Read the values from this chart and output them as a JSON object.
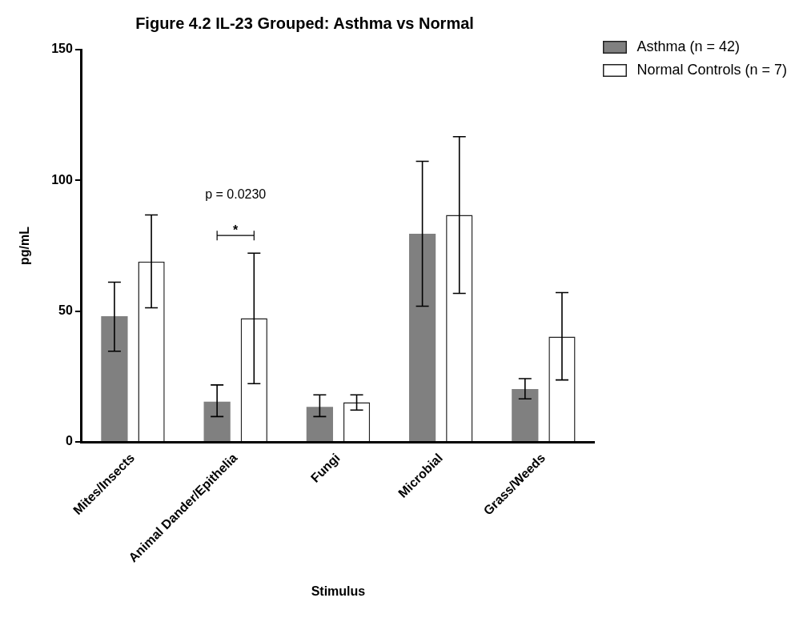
{
  "chart_data": {
    "type": "bar",
    "title": "Figure 4.2 IL-23 Grouped: Asthma vs Normal",
    "xlabel": "Stimulus",
    "ylabel": "pg/mL",
    "categories": [
      "Mites/Insects",
      "Animal Dander/Epithelia",
      "Fungi",
      "Microbial",
      "Grass/Weeds"
    ],
    "series": [
      {
        "name": "Asthma (n = 42)",
        "color": "#808080",
        "values": [
          48.1,
          15.4,
          13.4,
          79.6,
          20.2
        ],
        "errors": [
          [
            34.7,
            61.1
          ],
          [
            9.7,
            21.8
          ],
          [
            9.7,
            18.0
          ],
          [
            51.9,
            107.3
          ],
          [
            16.5,
            24.2
          ]
        ]
      },
      {
        "name": "Normal Controls (n = 7)",
        "color": "#ffffff",
        "values": [
          69.0,
          47.3,
          15.2,
          86.8,
          40.3
        ],
        "errors": [
          [
            51.3,
            86.8
          ],
          [
            22.3,
            72.2
          ],
          [
            12.2,
            18.0
          ],
          [
            56.8,
            116.7
          ],
          [
            23.7,
            57.1
          ]
        ]
      }
    ],
    "annotations": [
      "p = 0.0230",
      "*"
    ],
    "ylim": [
      0,
      150
    ],
    "yticks": [
      0,
      50,
      100,
      150
    ],
    "grid": false,
    "legend": "top right"
  }
}
